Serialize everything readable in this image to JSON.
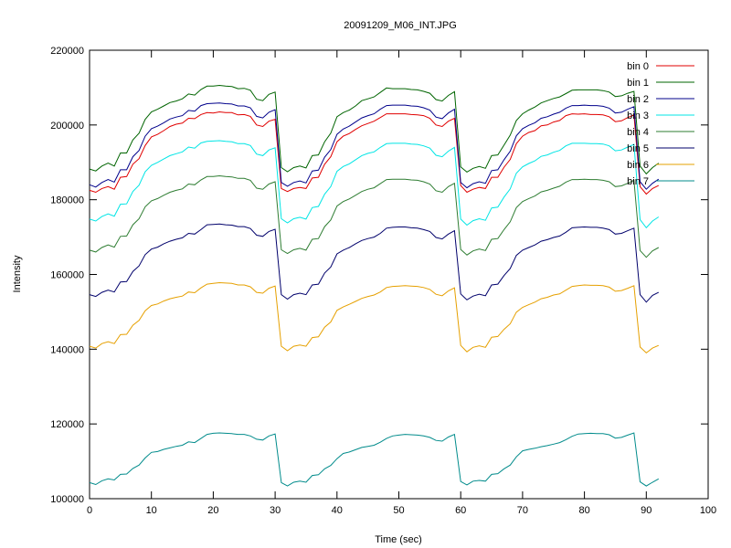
{
  "chart_data": {
    "type": "line",
    "title": "20091209_M06_INT.JPG",
    "xlabel": "Time (sec)",
    "ylabel": "Intensity",
    "xlim": [
      0,
      100
    ],
    "ylim": [
      100000,
      220000
    ],
    "x_ticks": [
      0,
      10,
      20,
      30,
      40,
      50,
      60,
      70,
      80,
      90,
      100
    ],
    "y_ticks": [
      100000,
      120000,
      140000,
      160000,
      180000,
      200000,
      220000
    ],
    "grid": false,
    "legend_position": "top-right",
    "x": [
      0,
      1,
      2,
      3,
      4,
      5,
      6,
      7,
      8,
      9,
      10,
      11,
      12,
      13,
      14,
      15,
      16,
      17,
      18,
      19,
      20,
      21,
      22,
      23,
      24,
      25,
      26,
      27,
      28,
      29,
      30,
      31,
      32,
      33,
      34,
      35,
      36,
      37,
      38,
      39,
      40,
      41,
      42,
      43,
      44,
      45,
      46,
      47,
      48,
      49,
      50,
      51,
      52,
      53,
      54,
      55,
      56,
      57,
      58,
      59,
      60,
      61,
      62,
      63,
      64,
      65,
      66,
      67,
      68,
      69,
      70,
      71,
      72,
      73,
      74,
      75,
      76,
      77,
      78,
      79,
      80,
      81,
      82,
      83,
      84,
      85,
      86,
      87,
      88,
      89,
      90,
      91,
      92
    ],
    "series": [
      {
        "name": "bin 0",
        "color": "#e00000",
        "values": [
          182500,
          182000,
          183000,
          183500,
          182800,
          186000,
          186200,
          189500,
          191000,
          194500,
          196800,
          197500,
          198500,
          199600,
          200200,
          200500,
          201800,
          201700,
          202800,
          203300,
          203200,
          203500,
          203300,
          203300,
          202700,
          202800,
          202300,
          200000,
          199600,
          201000,
          201500,
          183000,
          182200,
          183000,
          183300,
          183000,
          185800,
          186000,
          189500,
          191500,
          195500,
          197000,
          197700,
          198800,
          199800,
          200400,
          201000,
          202000,
          203000,
          203000,
          203000,
          203000,
          202800,
          202700,
          202500,
          201800,
          200000,
          199600,
          201000,
          201800,
          183800,
          182000,
          182800,
          183300,
          183000,
          186000,
          186000,
          188700,
          190800,
          195000,
          197000,
          198000,
          198500,
          199800,
          200000,
          200800,
          201200,
          202500,
          203000,
          202900,
          203000,
          202800,
          202800,
          202700,
          202200,
          200900,
          201100,
          202000,
          202700,
          183500,
          181500,
          183000,
          183800
        ]
      },
      {
        "name": "bin 1",
        "color": "#006400",
        "values": [
          188200,
          187700,
          189000,
          189800,
          189000,
          192500,
          192500,
          196000,
          197800,
          201500,
          203500,
          204200,
          205100,
          206000,
          206400,
          207000,
          208300,
          208000,
          209500,
          210400,
          210400,
          210600,
          210400,
          210300,
          209700,
          209800,
          209300,
          206900,
          206500,
          208200,
          208800,
          188600,
          187500,
          188600,
          189000,
          188500,
          191800,
          192000,
          195500,
          197800,
          202200,
          203300,
          204000,
          205100,
          206500,
          207000,
          207500,
          208700,
          209900,
          209700,
          209700,
          209700,
          209500,
          209400,
          209000,
          208500,
          206800,
          206400,
          207900,
          208900,
          188800,
          187400,
          188400,
          188900,
          188400,
          191800,
          192000,
          194600,
          197300,
          201200,
          203000,
          204000,
          204800,
          205900,
          206500,
          207100,
          207500,
          208400,
          209300,
          209400,
          209400,
          209400,
          209400,
          209200,
          208800,
          207600,
          207800,
          208500,
          209000,
          189000,
          186900,
          188600,
          189800
        ]
      },
      {
        "name": "bin 2",
        "color": "#00008b",
        "values": [
          184000,
          183400,
          184600,
          185400,
          184700,
          188000,
          188000,
          191500,
          193200,
          197000,
          199000,
          199700,
          200600,
          201600,
          202100,
          202500,
          203900,
          203700,
          205200,
          205700,
          205800,
          205900,
          205700,
          205600,
          205100,
          205100,
          204600,
          202300,
          201900,
          203400,
          204100,
          184600,
          183600,
          184600,
          185000,
          184500,
          187700,
          187900,
          191400,
          193400,
          197500,
          198900,
          199700,
          200800,
          201900,
          202500,
          203000,
          204200,
          205200,
          205300,
          205300,
          205300,
          205100,
          205000,
          204600,
          204000,
          202100,
          201700,
          203200,
          204200,
          184600,
          183200,
          184300,
          184800,
          184400,
          187800,
          188000,
          190700,
          193000,
          197100,
          199000,
          199900,
          200600,
          201800,
          202200,
          202900,
          203400,
          204500,
          205200,
          205200,
          205300,
          205200,
          205200,
          205000,
          204500,
          203200,
          203400,
          204200,
          204900,
          184800,
          182800,
          184400,
          185500
        ]
      },
      {
        "name": "bin 3",
        "color": "#00e5e5",
        "values": [
          174800,
          174300,
          175500,
          176200,
          175600,
          178800,
          178900,
          182200,
          183900,
          187500,
          189200,
          190000,
          190900,
          191800,
          192300,
          192800,
          194100,
          193800,
          195200,
          195600,
          195700,
          195800,
          195600,
          195500,
          195000,
          195000,
          194500,
          192200,
          191800,
          193300,
          193900,
          174900,
          173800,
          174900,
          175300,
          174800,
          177900,
          178200,
          181500,
          183500,
          187600,
          188900,
          189600,
          190700,
          191800,
          192400,
          192800,
          194000,
          195000,
          195100,
          195100,
          195100,
          194900,
          194800,
          194400,
          193800,
          191900,
          191500,
          193000,
          194000,
          174800,
          173200,
          174400,
          174900,
          174500,
          177800,
          178000,
          180700,
          182900,
          187100,
          188800,
          189700,
          190400,
          191600,
          192000,
          192700,
          193200,
          194400,
          195100,
          195100,
          195100,
          195000,
          195000,
          194900,
          194400,
          193100,
          193300,
          194100,
          194800,
          174700,
          172500,
          174300,
          175400
        ]
      },
      {
        "name": "bin 4",
        "color": "#2e7d32",
        "values": [
          166500,
          166000,
          167200,
          167900,
          167300,
          170200,
          170300,
          173300,
          174900,
          178100,
          179700,
          180300,
          181200,
          182000,
          182500,
          182900,
          184200,
          184000,
          185300,
          186200,
          186200,
          186400,
          186200,
          186100,
          185700,
          185700,
          185200,
          183100,
          182800,
          184200,
          184800,
          166600,
          165600,
          166600,
          167000,
          166500,
          169400,
          169600,
          172800,
          174600,
          178300,
          179500,
          180200,
          181200,
          182200,
          182800,
          183200,
          184300,
          185400,
          185500,
          185500,
          185500,
          185300,
          185200,
          184800,
          184200,
          182400,
          182000,
          183500,
          184400,
          166700,
          165200,
          166300,
          166800,
          166400,
          169400,
          169600,
          172000,
          174100,
          177900,
          179500,
          180300,
          181000,
          182100,
          182500,
          183100,
          183600,
          184700,
          185400,
          185400,
          185500,
          185400,
          185400,
          185200,
          184800,
          183500,
          183700,
          184400,
          185200,
          166400,
          164600,
          166300,
          167200
        ]
      },
      {
        "name": "bin 5",
        "color": "#00006b",
        "values": [
          154600,
          154100,
          155200,
          155800,
          155300,
          158000,
          158100,
          160800,
          162300,
          165300,
          166800,
          167300,
          168200,
          168900,
          169400,
          169800,
          171000,
          170800,
          172000,
          173300,
          173400,
          173500,
          173300,
          173200,
          172800,
          172800,
          172300,
          170500,
          170200,
          171500,
          172100,
          154600,
          153400,
          154600,
          155000,
          154600,
          157200,
          157400,
          160400,
          162000,
          165500,
          166500,
          167200,
          168200,
          169100,
          169600,
          170000,
          171000,
          172400,
          172600,
          172700,
          172700,
          172500,
          172400,
          172000,
          171500,
          169900,
          169500,
          170800,
          171700,
          154800,
          153200,
          154200,
          154700,
          154300,
          157200,
          157400,
          159700,
          161600,
          165100,
          166500,
          167200,
          167900,
          168900,
          169300,
          169900,
          170300,
          171300,
          172500,
          172600,
          172700,
          172600,
          172600,
          172400,
          172000,
          170800,
          171000,
          171700,
          172400,
          154600,
          152600,
          154400,
          155200
        ]
      },
      {
        "name": "bin 6",
        "color": "#e6a000",
        "values": [
          140800,
          140300,
          141500,
          142000,
          141500,
          143900,
          144000,
          146400,
          147700,
          150300,
          151700,
          152100,
          152900,
          153500,
          153900,
          154200,
          155300,
          155100,
          156400,
          157400,
          157600,
          157800,
          157700,
          157600,
          157200,
          157200,
          156700,
          155200,
          155000,
          156300,
          156900,
          140800,
          139600,
          140800,
          141100,
          140800,
          143100,
          143300,
          145900,
          147300,
          150400,
          151300,
          152000,
          152800,
          153600,
          154100,
          154500,
          155300,
          156500,
          156800,
          156900,
          157000,
          156900,
          156800,
          156500,
          156000,
          154700,
          154300,
          155600,
          156400,
          141000,
          139300,
          140500,
          140900,
          140500,
          143200,
          143400,
          145300,
          146800,
          149900,
          151200,
          151900,
          152600,
          153500,
          153900,
          154500,
          154800,
          155800,
          156800,
          157000,
          157200,
          157100,
          157100,
          157000,
          156600,
          155500,
          155700,
          156300,
          157000,
          140600,
          139000,
          140300,
          141000
        ]
      },
      {
        "name": "bin 7",
        "color": "#008b8b",
        "values": [
          104300,
          103800,
          104800,
          105300,
          105000,
          106500,
          106600,
          108100,
          109000,
          110900,
          112400,
          112600,
          113200,
          113600,
          114000,
          114300,
          115200,
          115000,
          116100,
          117200,
          117500,
          117600,
          117500,
          117400,
          117200,
          117200,
          116800,
          115900,
          115700,
          116800,
          117300,
          104300,
          103400,
          104400,
          104700,
          104400,
          106200,
          106400,
          108000,
          108900,
          110700,
          112100,
          112500,
          113100,
          113700,
          114000,
          114300,
          115100,
          116100,
          116800,
          117000,
          117200,
          117100,
          117000,
          116800,
          116400,
          115600,
          115400,
          116500,
          117200,
          104600,
          103700,
          104700,
          104900,
          104700,
          106500,
          106700,
          108000,
          109000,
          111200,
          112800,
          113200,
          113500,
          113900,
          114200,
          114600,
          115000,
          115800,
          116700,
          117300,
          117400,
          117500,
          117400,
          117400,
          117100,
          116200,
          116400,
          117000,
          117600,
          104500,
          103400,
          104400,
          105300
        ]
      }
    ]
  }
}
